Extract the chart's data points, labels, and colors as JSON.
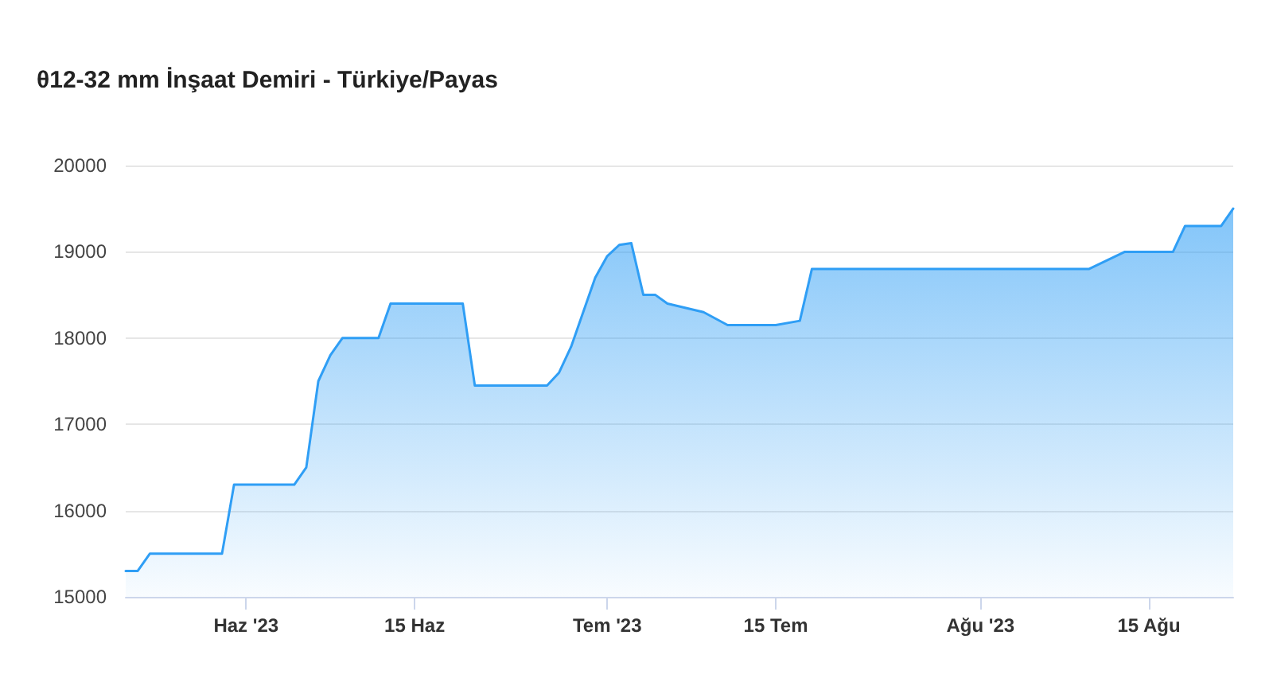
{
  "chart_data": {
    "type": "area",
    "title": "θ12-32 mm İnşaat Demiri - Türkiye/Payas",
    "x": [
      "2023-05-22",
      "2023-05-23",
      "2023-05-24",
      "2023-05-30",
      "2023-05-31",
      "2023-06-05",
      "2023-06-06",
      "2023-06-07",
      "2023-06-08",
      "2023-06-09",
      "2023-06-12",
      "2023-06-13",
      "2023-06-19",
      "2023-06-20",
      "2023-06-26",
      "2023-06-27",
      "2023-06-28",
      "2023-06-30",
      "2023-07-01",
      "2023-07-02",
      "2023-07-03",
      "2023-07-04",
      "2023-07-05",
      "2023-07-06",
      "2023-07-09",
      "2023-07-11",
      "2023-07-15",
      "2023-07-17",
      "2023-07-18",
      "2023-08-10",
      "2023-08-13",
      "2023-08-17",
      "2023-08-18",
      "2023-08-21",
      "2023-08-22"
    ],
    "series": [
      {
        "color": "#2f9ef5",
        "values": [
          15300,
          15300,
          15500,
          15500,
          16300,
          16300,
          16500,
          17500,
          17800,
          18000,
          18000,
          18400,
          18400,
          17450,
          17450,
          17600,
          17900,
          18700,
          18950,
          19080,
          19100,
          18500,
          18500,
          18400,
          18300,
          18150,
          18150,
          18200,
          18800,
          18800,
          19000,
          19000,
          19300,
          19300,
          19500
        ]
      }
    ],
    "xlim": [
      "2023-05-22",
      "2023-08-22"
    ],
    "xticks": [
      {
        "value": "2023-06-01",
        "label": "Haz '23"
      },
      {
        "value": "2023-06-15",
        "label": "15 Haz"
      },
      {
        "value": "2023-07-01",
        "label": "Tem '23"
      },
      {
        "value": "2023-07-15",
        "label": "15 Tem"
      },
      {
        "value": "2023-08-01",
        "label": "Ağu '23"
      },
      {
        "value": "2023-08-15",
        "label": "15 Ağu"
      }
    ],
    "ylim": [
      15000,
      20000
    ],
    "yticks": [
      15000,
      16000,
      17000,
      18000,
      19000,
      20000
    ],
    "grid": "y",
    "marker": "none",
    "line_style": "solid"
  }
}
